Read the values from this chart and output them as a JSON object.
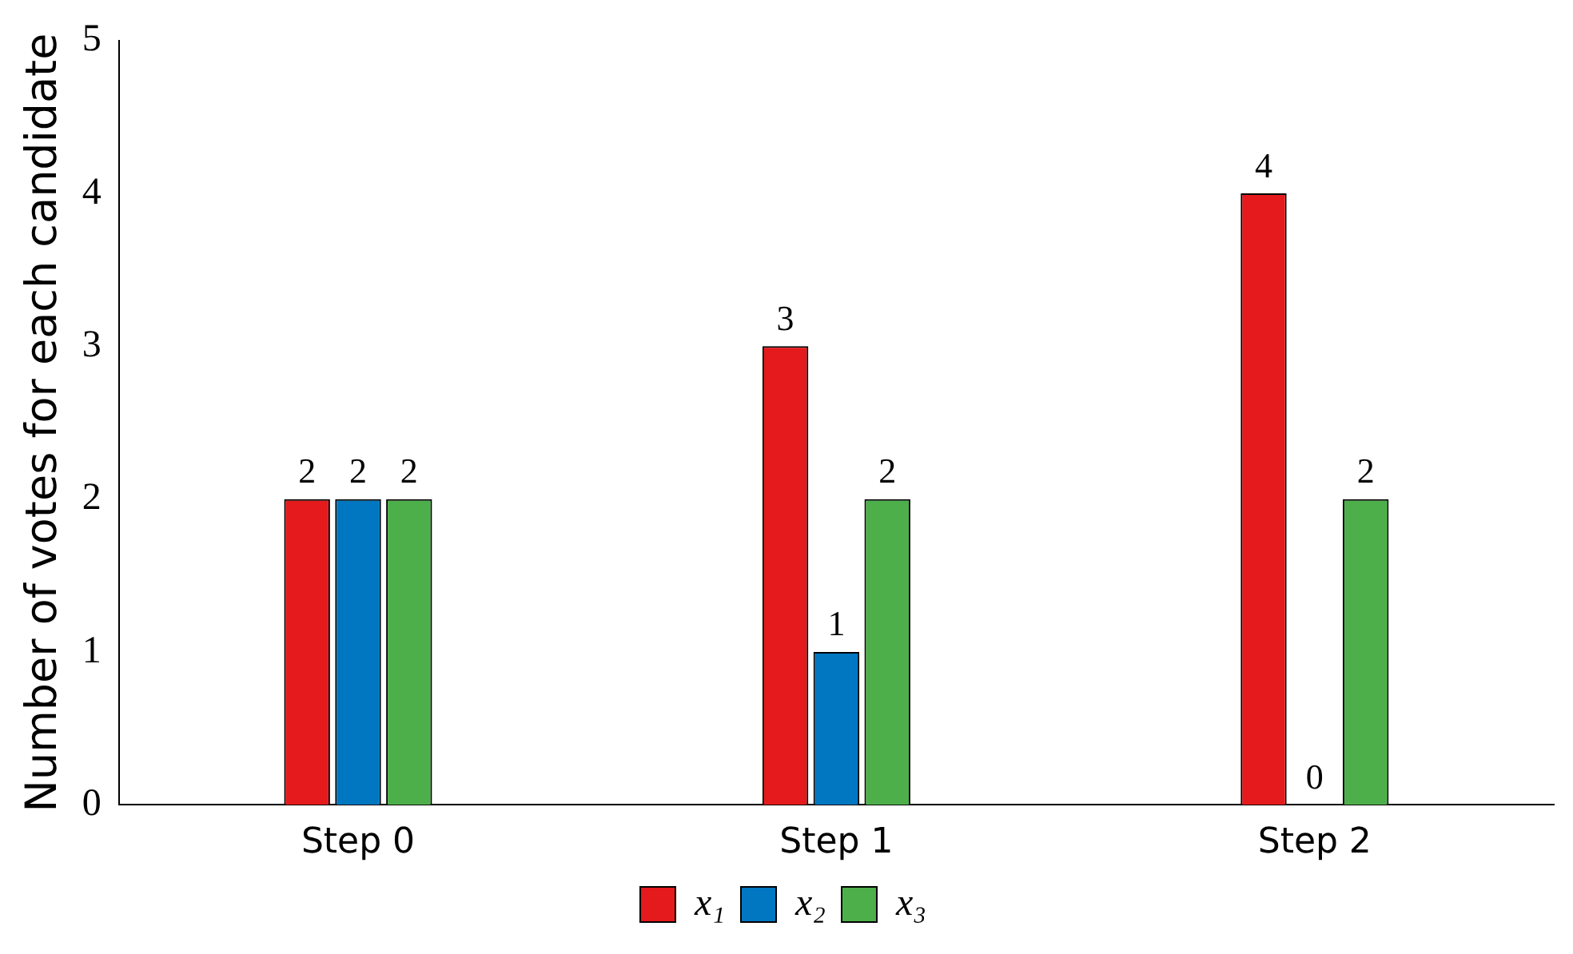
{
  "chart_data": {
    "type": "bar",
    "ylabel": "Number of votes for each candidate",
    "categories": [
      "Step 0",
      "Step 1",
      "Step 2"
    ],
    "series": [
      {
        "name": "x₁",
        "color": "#e41a1c",
        "values": [
          2,
          3,
          4
        ]
      },
      {
        "name": "x₂",
        "color": "#0077c0",
        "values": [
          2,
          1,
          0
        ]
      },
      {
        "name": "x₃",
        "color": "#4daf4a",
        "values": [
          2,
          2,
          2
        ]
      }
    ],
    "ylim": [
      0,
      5
    ],
    "yticks": [
      0,
      1,
      2,
      3,
      4,
      5
    ],
    "grid": false,
    "legend": "bottom",
    "data_labels": true
  }
}
